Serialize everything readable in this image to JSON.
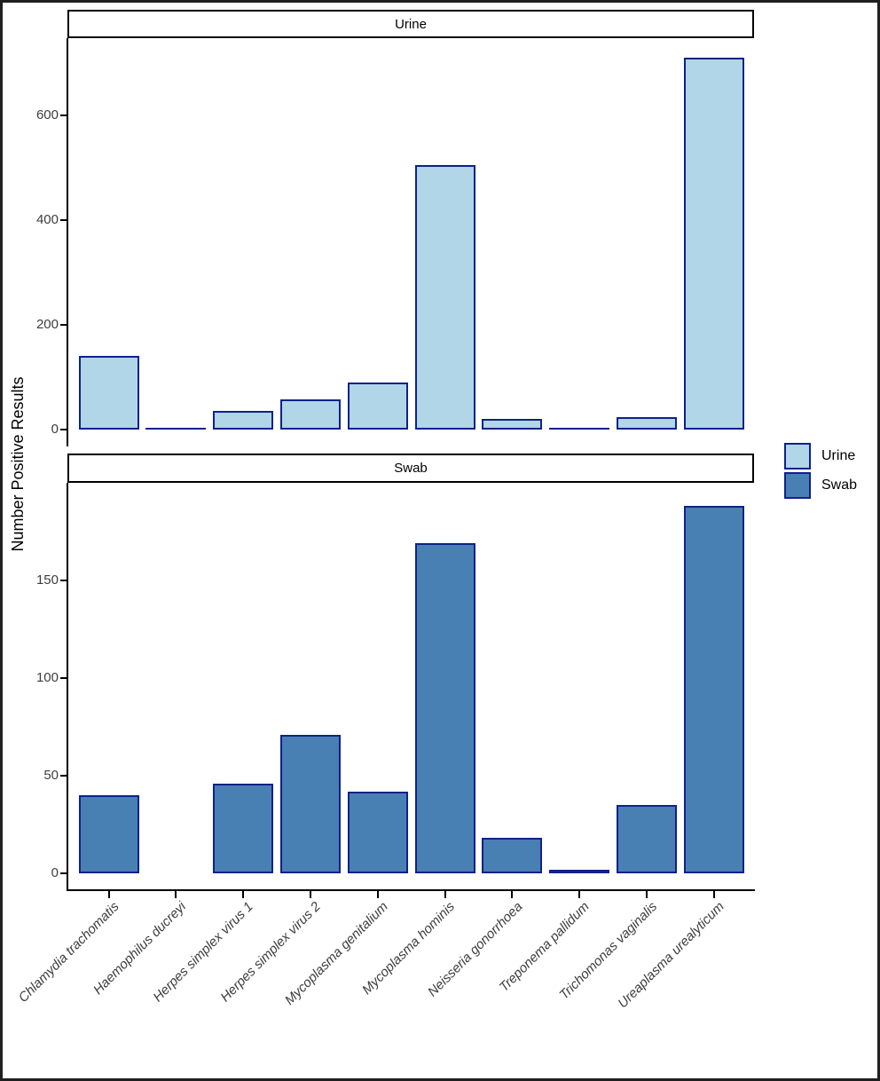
{
  "chart_data": {
    "type": "bar",
    "title": "",
    "ylabel": "Number Positive Results",
    "xlabel": "",
    "grid": false,
    "legend_position": "right",
    "facet_layout": "two stacked panels sharing x axis",
    "bar_border_color": "#0f218b",
    "categories": [
      "Chlamydia trachomatis",
      "Haemophilus ducreyi",
      "Herpes simplex virus 1",
      "Herpes simplex virus 2",
      "Mycoplasma genitalium",
      "Mycoplasma hominis",
      "Neisseria gonorrhoea",
      "Treponema pallidum",
      "Trichomonas vaginalis",
      "Ureaplasma urealyticum"
    ],
    "series": [
      {
        "name": "Urine",
        "color": "#b0d6e8",
        "values": [
          140,
          1,
          35,
          58,
          90,
          505,
          21,
          1,
          24,
          710
        ],
        "yticks": [
          0,
          200,
          400,
          600
        ],
        "ylim": [
          0,
          745
        ]
      },
      {
        "name": "Swab",
        "color": "#4880b4",
        "values": [
          40,
          0,
          46,
          71,
          42,
          169,
          18,
          2,
          35,
          188
        ],
        "yticks": [
          0,
          50,
          100,
          150
        ],
        "ylim": [
          0,
          200
        ]
      }
    ]
  }
}
